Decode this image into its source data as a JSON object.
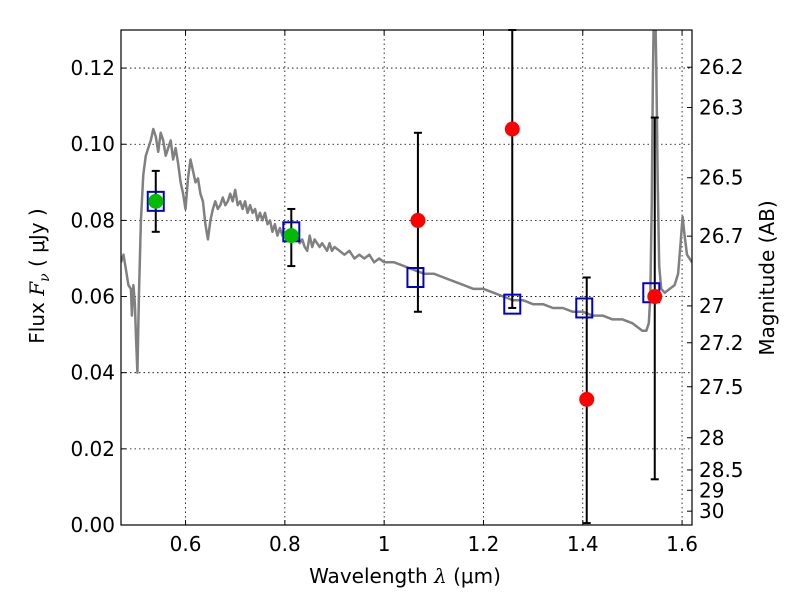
{
  "chart_data": {
    "type": "scatter",
    "xlabel": {
      "prefix": "Wavelength  ",
      "symbol": "λ",
      "unit": " (μm)"
    },
    "ylabel": {
      "prefix": "Flux  ",
      "symbol": "F",
      "sub": "ν",
      "unit": "  ( μJy )"
    },
    "y2label": "Magnitude (AB)",
    "xlim": [
      0.47,
      1.62
    ],
    "ylim": [
      0.0,
      0.13
    ],
    "grid": true,
    "xticks": [
      {
        "value": 0.6,
        "label": "0.6"
      },
      {
        "value": 0.8,
        "label": "0.8"
      },
      {
        "value": 1.0,
        "label": "1"
      },
      {
        "value": 1.2,
        "label": "1.2"
      },
      {
        "value": 1.4,
        "label": "1.4"
      },
      {
        "value": 1.6,
        "label": "1.6"
      }
    ],
    "yticks": [
      {
        "value": 0.0,
        "label": "0.00"
      },
      {
        "value": 0.02,
        "label": "0.02"
      },
      {
        "value": 0.04,
        "label": "0.04"
      },
      {
        "value": 0.06,
        "label": "0.06"
      },
      {
        "value": 0.08,
        "label": "0.08"
      },
      {
        "value": 0.1,
        "label": "0.10"
      },
      {
        "value": 0.12,
        "label": "0.12"
      }
    ],
    "y2ticks": [
      {
        "mag": 26.2,
        "label": "26.2"
      },
      {
        "mag": 26.3,
        "label": "26.3"
      },
      {
        "mag": 26.5,
        "label": "26.5"
      },
      {
        "mag": 26.7,
        "label": "26.7"
      },
      {
        "mag": 27.0,
        "label": "27"
      },
      {
        "mag": 27.2,
        "label": "27.2"
      },
      {
        "mag": 27.5,
        "label": "27.5"
      },
      {
        "mag": 28.0,
        "label": "28"
      },
      {
        "mag": 28.5,
        "label": "28.5"
      },
      {
        "mag": 29.0,
        "label": "29"
      },
      {
        "mag": 30.0,
        "label": "30"
      }
    ],
    "model_spectrum": {
      "color": "#808080",
      "points": [
        [
          0.47,
          0.069
        ],
        [
          0.475,
          0.071
        ],
        [
          0.48,
          0.067
        ],
        [
          0.485,
          0.063
        ],
        [
          0.49,
          0.062
        ],
        [
          0.492,
          0.055
        ],
        [
          0.495,
          0.063
        ],
        [
          0.498,
          0.058
        ],
        [
          0.5,
          0.05
        ],
        [
          0.503,
          0.04
        ],
        [
          0.506,
          0.06
        ],
        [
          0.51,
          0.08
        ],
        [
          0.515,
          0.092
        ],
        [
          0.52,
          0.097
        ],
        [
          0.525,
          0.099
        ],
        [
          0.53,
          0.101
        ],
        [
          0.535,
          0.104
        ],
        [
          0.54,
          0.102
        ],
        [
          0.545,
          0.098
        ],
        [
          0.55,
          0.103
        ],
        [
          0.555,
          0.101
        ],
        [
          0.56,
          0.097
        ],
        [
          0.565,
          0.099
        ],
        [
          0.57,
          0.101
        ],
        [
          0.575,
          0.096
        ],
        [
          0.58,
          0.099
        ],
        [
          0.585,
          0.095
        ],
        [
          0.59,
          0.09
        ],
        [
          0.595,
          0.087
        ],
        [
          0.6,
          0.083
        ],
        [
          0.605,
          0.091
        ],
        [
          0.61,
          0.096
        ],
        [
          0.615,
          0.093
        ],
        [
          0.62,
          0.09
        ],
        [
          0.625,
          0.091
        ],
        [
          0.63,
          0.087
        ],
        [
          0.635,
          0.085
        ],
        [
          0.64,
          0.079
        ],
        [
          0.645,
          0.075
        ],
        [
          0.65,
          0.08
        ],
        [
          0.655,
          0.083
        ],
        [
          0.66,
          0.085
        ],
        [
          0.665,
          0.083
        ],
        [
          0.67,
          0.084
        ],
        [
          0.675,
          0.086
        ],
        [
          0.68,
          0.084
        ],
        [
          0.685,
          0.085
        ],
        [
          0.69,
          0.087
        ],
        [
          0.695,
          0.085
        ],
        [
          0.7,
          0.088
        ],
        [
          0.705,
          0.084
        ],
        [
          0.71,
          0.085
        ],
        [
          0.715,
          0.083
        ],
        [
          0.72,
          0.085
        ],
        [
          0.725,
          0.082
        ],
        [
          0.73,
          0.084
        ],
        [
          0.735,
          0.082
        ],
        [
          0.74,
          0.083
        ],
        [
          0.745,
          0.08
        ],
        [
          0.75,
          0.082
        ],
        [
          0.755,
          0.08
        ],
        [
          0.76,
          0.082
        ],
        [
          0.765,
          0.079
        ],
        [
          0.77,
          0.08
        ],
        [
          0.775,
          0.077
        ],
        [
          0.78,
          0.079
        ],
        [
          0.785,
          0.076
        ],
        [
          0.79,
          0.078
        ],
        [
          0.795,
          0.076
        ],
        [
          0.8,
          0.077
        ],
        [
          0.805,
          0.076
        ],
        [
          0.81,
          0.075
        ],
        [
          0.815,
          0.077
        ],
        [
          0.82,
          0.075
        ],
        [
          0.825,
          0.076
        ],
        [
          0.83,
          0.074
        ],
        [
          0.835,
          0.075
        ],
        [
          0.84,
          0.073
        ],
        [
          0.845,
          0.072
        ],
        [
          0.85,
          0.076
        ],
        [
          0.855,
          0.073
        ],
        [
          0.86,
          0.075
        ],
        [
          0.865,
          0.074
        ],
        [
          0.87,
          0.073
        ],
        [
          0.875,
          0.074
        ],
        [
          0.88,
          0.073
        ],
        [
          0.885,
          0.072
        ],
        [
          0.89,
          0.074
        ],
        [
          0.895,
          0.072
        ],
        [
          0.9,
          0.073
        ],
        [
          0.91,
          0.072
        ],
        [
          0.92,
          0.071
        ],
        [
          0.93,
          0.072
        ],
        [
          0.94,
          0.07
        ],
        [
          0.95,
          0.071
        ],
        [
          0.96,
          0.07
        ],
        [
          0.97,
          0.071
        ],
        [
          0.98,
          0.069
        ],
        [
          0.99,
          0.07
        ],
        [
          1.0,
          0.069
        ],
        [
          1.02,
          0.069
        ],
        [
          1.04,
          0.068
        ],
        [
          1.06,
          0.067
        ],
        [
          1.08,
          0.066
        ],
        [
          1.1,
          0.066
        ],
        [
          1.12,
          0.065
        ],
        [
          1.14,
          0.064
        ],
        [
          1.16,
          0.063
        ],
        [
          1.18,
          0.062
        ],
        [
          1.2,
          0.062
        ],
        [
          1.22,
          0.061
        ],
        [
          1.24,
          0.06
        ],
        [
          1.26,
          0.059
        ],
        [
          1.28,
          0.059
        ],
        [
          1.3,
          0.058
        ],
        [
          1.32,
          0.058
        ],
        [
          1.34,
          0.057
        ],
        [
          1.36,
          0.057
        ],
        [
          1.38,
          0.056
        ],
        [
          1.4,
          0.056
        ],
        [
          1.42,
          0.055
        ],
        [
          1.44,
          0.055
        ],
        [
          1.46,
          0.054
        ],
        [
          1.48,
          0.054
        ],
        [
          1.5,
          0.053
        ],
        [
          1.51,
          0.052
        ],
        [
          1.52,
          0.051
        ],
        [
          1.528,
          0.051
        ],
        [
          1.533,
          0.053
        ],
        [
          1.536,
          0.06
        ],
        [
          1.539,
          0.085
        ],
        [
          1.541,
          0.115
        ],
        [
          1.543,
          0.135
        ],
        [
          1.546,
          0.135
        ],
        [
          1.548,
          0.12
        ],
        [
          1.551,
          0.09
        ],
        [
          1.554,
          0.068
        ],
        [
          1.558,
          0.062
        ],
        [
          1.565,
          0.061
        ],
        [
          1.575,
          0.062
        ],
        [
          1.585,
          0.063
        ],
        [
          1.592,
          0.066
        ],
        [
          1.597,
          0.074
        ],
        [
          1.601,
          0.081
        ],
        [
          1.605,
          0.076
        ],
        [
          1.61,
          0.071
        ],
        [
          1.62,
          0.069
        ]
      ]
    },
    "series": [
      {
        "marker": "open-square",
        "color": "#0000cc",
        "points": [
          {
            "x": 0.54,
            "y": 0.085
          },
          {
            "x": 0.813,
            "y": 0.077
          },
          {
            "x": 1.063,
            "y": 0.065
          },
          {
            "x": 1.258,
            "y": 0.058
          },
          {
            "x": 1.403,
            "y": 0.057
          },
          {
            "x": 1.538,
            "y": 0.061
          }
        ]
      },
      {
        "marker": "circle",
        "color": "#00bb00",
        "points": [
          {
            "x": 0.54,
            "y": 0.085,
            "yerr_low": 0.077,
            "yerr_high": 0.093
          },
          {
            "x": 0.813,
            "y": 0.076,
            "yerr_low": 0.068,
            "yerr_high": 0.083
          }
        ]
      },
      {
        "marker": "circle",
        "color": "#ff0000",
        "points": [
          {
            "x": 1.068,
            "y": 0.08,
            "yerr_low": 0.056,
            "yerr_high": 0.103
          },
          {
            "x": 1.258,
            "y": 0.104,
            "yerr_low": 0.057,
            "yerr_high": 0.13
          },
          {
            "x": 1.408,
            "y": 0.033,
            "yerr_low": 0.0005,
            "yerr_high": 0.065
          },
          {
            "x": 1.545,
            "y": 0.06,
            "yerr_low": 0.012,
            "yerr_high": 0.107
          }
        ]
      }
    ]
  }
}
